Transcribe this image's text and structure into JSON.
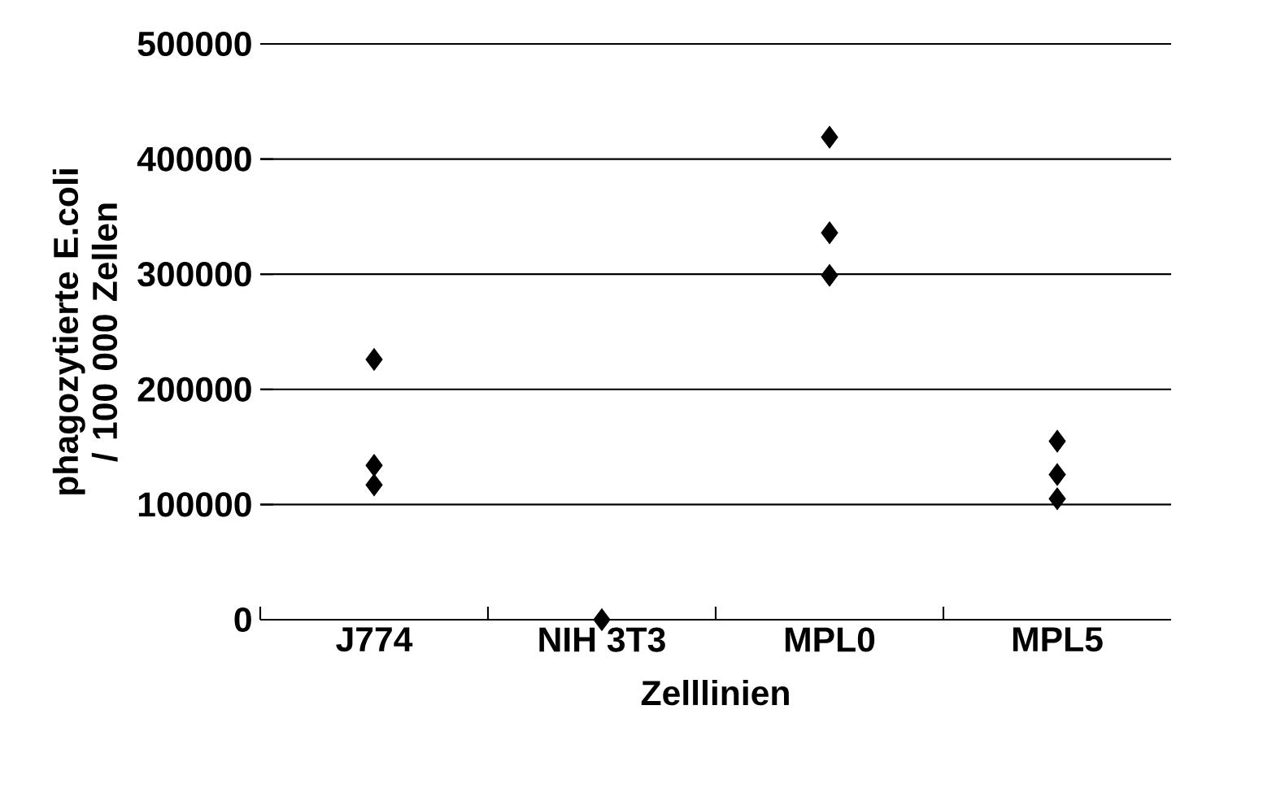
{
  "chart_data": {
    "type": "scatter",
    "xlabel": "Zelllinien",
    "ylabel": "phagozytierte E.coli / 100 000 Zellen",
    "categories": [
      "J774",
      "NIH 3T3",
      "MPL0",
      "MPL5"
    ],
    "series": [
      {
        "color": "#000000",
        "values": [
          226000,
          0,
          419000,
          155000
        ]
      },
      {
        "color": "#000000",
        "values": [
          134000,
          null,
          336000,
          126000
        ]
      },
      {
        "color": "#000000",
        "values": [
          117000,
          null,
          299000,
          105000
        ]
      }
    ],
    "ylim": [
      0,
      500000
    ],
    "yticks": [
      0,
      100000,
      200000,
      300000,
      400000,
      500000
    ],
    "grid": "y",
    "marker": "diamond"
  }
}
